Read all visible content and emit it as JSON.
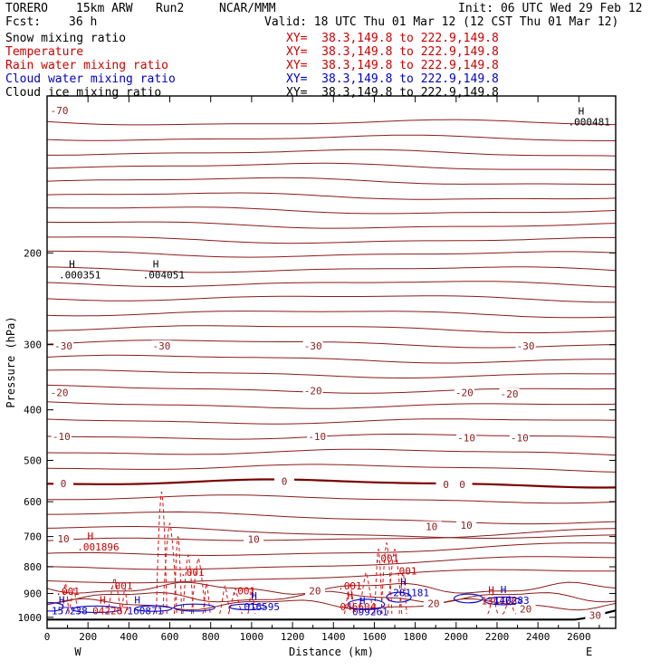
{
  "header": {
    "model": "TORERO",
    "resolution": "15km ARW",
    "run": "Run2",
    "org": "NCAR/MMM",
    "init": "Init: 06 UTC Wed 29 Feb 12",
    "fcst_label": "Fcst:",
    "fcst_value": "36 h",
    "valid": "Valid: 18 UTC Thu 01 Mar 12 (12 CST Thu 01 Mar 12)"
  },
  "legend": [
    {
      "label": "Snow mixing ratio",
      "color": "#000000",
      "xy": "XY=  38.3,149.8 to 222.9,149.8"
    },
    {
      "label": "Temperature",
      "color": "#cc0000",
      "xy": "XY=  38.3,149.8 to 222.9,149.8"
    },
    {
      "label": "Rain water mixing ratio",
      "color": "#cc0000",
      "xy": "XY=  38.3,149.8 to 222.9,149.8"
    },
    {
      "label": "Cloud water mixing ratio",
      "color": "#0000cc",
      "xy": "XY=  38.3,149.8 to 222.9,149.8"
    },
    {
      "label": "Cloud ice mixing ratio",
      "color": "#000000",
      "xy": "XY=  38.3,149.8 to 222.9,149.8"
    }
  ],
  "chart_data": {
    "type": "line",
    "xlabel": "Distance (km)",
    "ylabel": "Pressure (hPa)",
    "xlim": [
      0,
      2780
    ],
    "ylim": [
      1050,
      100
    ],
    "y_scale": "log",
    "x_ticks": [
      0,
      200,
      400,
      600,
      800,
      1000,
      1200,
      1400,
      1600,
      1800,
      2000,
      2200,
      2400,
      2600
    ],
    "y_ticks": [
      200,
      300,
      400,
      500,
      600,
      700,
      800,
      900,
      1000
    ],
    "left_end_label": "W",
    "right_end_label": "E",
    "temperature_labels": [
      {
        "x": 60,
        "p": 108,
        "text": "-70"
      },
      {
        "x": 80,
        "p": 305,
        "text": "-30"
      },
      {
        "x": 560,
        "p": 305,
        "text": "-30"
      },
      {
        "x": 1300,
        "p": 305,
        "text": "-30"
      },
      {
        "x": 2340,
        "p": 305,
        "text": "-30"
      },
      {
        "x": 60,
        "p": 375,
        "text": "-20"
      },
      {
        "x": 1300,
        "p": 372,
        "text": "-20"
      },
      {
        "x": 2040,
        "p": 375,
        "text": "-20"
      },
      {
        "x": 2260,
        "p": 377,
        "text": "-20"
      },
      {
        "x": 70,
        "p": 455,
        "text": "-10"
      },
      {
        "x": 1320,
        "p": 455,
        "text": "-10"
      },
      {
        "x": 2050,
        "p": 458,
        "text": "-10"
      },
      {
        "x": 2310,
        "p": 458,
        "text": "-10"
      },
      {
        "x": 80,
        "p": 560,
        "text": "0"
      },
      {
        "x": 1160,
        "p": 555,
        "text": "0"
      },
      {
        "x": 1950,
        "p": 563,
        "text": "0"
      },
      {
        "x": 2030,
        "p": 563,
        "text": "0"
      },
      {
        "x": 80,
        "p": 715,
        "text": "10"
      },
      {
        "x": 1010,
        "p": 716,
        "text": "10"
      },
      {
        "x": 1880,
        "p": 678,
        "text": "10"
      },
      {
        "x": 2050,
        "p": 673,
        "text": "10"
      },
      {
        "x": 1310,
        "p": 900,
        "text": "20"
      },
      {
        "x": 1890,
        "p": 952,
        "text": "20"
      },
      {
        "x": 2340,
        "p": 975,
        "text": "20"
      },
      {
        "x": 2680,
        "p": 1003,
        "text": "30"
      }
    ],
    "maxima": [
      {
        "x": 160,
        "p": 222,
        "text": ".000351",
        "mark": "H",
        "color": "#000000"
      },
      {
        "x": 570,
        "p": 222,
        "text": ".004051",
        "mark": "H",
        "color": "#000000"
      },
      {
        "x": 2650,
        "p": 113,
        "text": ".000481",
        "mark": "H",
        "color": "#000000"
      },
      {
        "x": 250,
        "p": 738,
        "text": ".001896",
        "mark": "H",
        "color": "#cc0000"
      },
      {
        "x": 110,
        "p": 980,
        "text": "157238",
        "mark": "H",
        "color": "#0000cc"
      },
      {
        "x": 310,
        "p": 980,
        "text": "042287",
        "mark": "H",
        "color": "#cc0000"
      },
      {
        "x": 480,
        "p": 980,
        "text": "160871",
        "mark": "H",
        "color": "#0000cc"
      },
      {
        "x": 1050,
        "p": 962,
        "text": "016595",
        "mark": "H",
        "color": "#0000cc"
      },
      {
        "x": 1520,
        "p": 962,
        "text": "046604",
        "mark": "H",
        "color": "#cc0000"
      },
      {
        "x": 1580,
        "p": 982,
        "text": "099261",
        "mark": "H",
        "color": "#0000cc"
      },
      {
        "x": 1780,
        "p": 903,
        "text": "281181",
        "mark": "H",
        "color": "#0000cc"
      },
      {
        "x": 2210,
        "p": 936,
        "text": "134706",
        "mark": "H",
        "color": "#cc0000"
      },
      {
        "x": 2270,
        "p": 935,
        "text": "140283",
        "mark": "H",
        "color": "#0000cc"
      }
    ],
    "rain_labels": [
      {
        "x": 100,
        "p": 905,
        "text": ".001"
      },
      {
        "x": 360,
        "p": 885,
        "text": ".001"
      },
      {
        "x": 710,
        "p": 832,
        "text": ".001"
      },
      {
        "x": 960,
        "p": 903,
        "text": ".001"
      },
      {
        "x": 1480,
        "p": 885,
        "text": ".001"
      },
      {
        "x": 1660,
        "p": 783,
        "text": ".001"
      },
      {
        "x": 1750,
        "p": 828,
        "text": ".001"
      }
    ]
  }
}
